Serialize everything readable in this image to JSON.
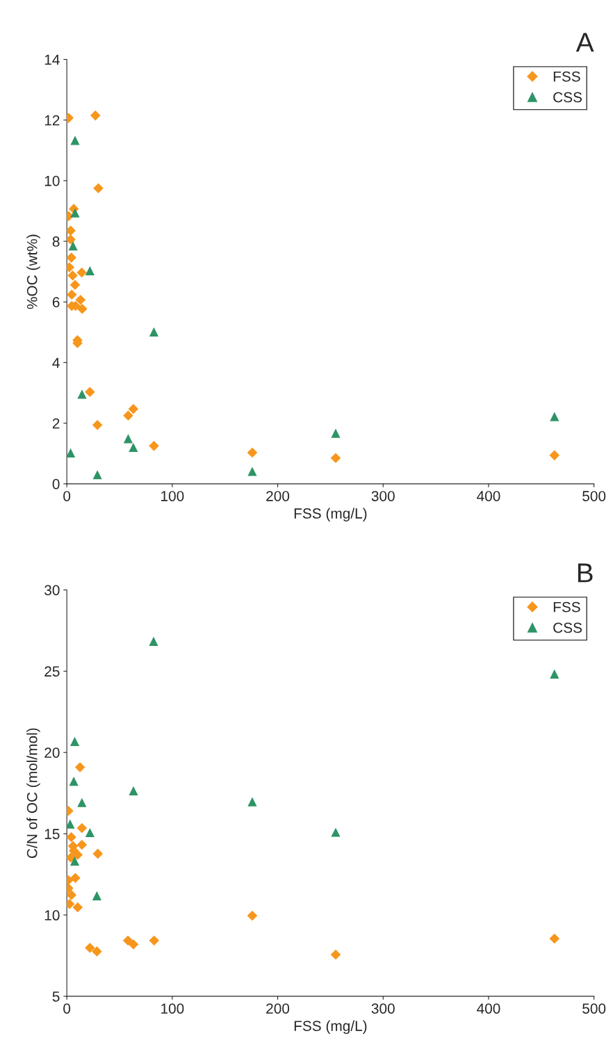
{
  "chart_data": [
    {
      "type": "scatter",
      "title": "A",
      "xlabel": "FSS (mg/L)",
      "ylabel": "%OC (wt%)",
      "xlim": [
        0,
        500
      ],
      "xticks": [
        0,
        100,
        200,
        300,
        400,
        500
      ],
      "ylim": [
        0,
        14
      ],
      "yticks": [
        0,
        2,
        4,
        6,
        8,
        10,
        12,
        14
      ],
      "grid": false,
      "legend": "top right",
      "series": [
        {
          "name": "FSS",
          "color": "#f7961c",
          "marker": "diamond",
          "x": [
            1.7,
            27.1,
            29.9,
            6.6,
            1.7,
            3.6,
            3.6,
            4.3,
            2.4,
            5.5,
            14.2,
            7.8,
            4.7,
            13,
            4.7,
            8.3,
            14.6,
            10.1,
            10.1,
            21.9,
            63.1,
            58.2,
            29,
            82.6,
            175.9,
            255,
            462.5
          ],
          "values": [
            12.07,
            12.15,
            9.75,
            9.07,
            8.83,
            8.35,
            8.06,
            7.46,
            7.14,
            6.87,
            6.97,
            6.56,
            6.24,
            6.07,
            5.87,
            5.87,
            5.77,
            4.74,
            4.64,
            3.03,
            2.47,
            2.25,
            1.94,
            1.25,
            1.03,
            0.85,
            0.94
          ]
        },
        {
          "name": "CSS",
          "color": "#2e9466",
          "marker": "triangle",
          "x": [
            7.8,
            7.8,
            5.9,
            21.9,
            82.6,
            14.4,
            58.2,
            63.1,
            3.6,
            29,
            175.9,
            255,
            462.5
          ],
          "values": [
            11.33,
            8.94,
            7.85,
            7.03,
            5.01,
            2.96,
            1.49,
            1.2,
            1.02,
            0.3,
            0.41,
            1.67,
            2.22
          ]
        }
      ]
    },
    {
      "type": "scatter",
      "title": "B",
      "xlabel": "FSS (mg/L)",
      "ylabel": "C/N of OC (mol/mol)",
      "xlim": [
        0,
        500
      ],
      "xticks": [
        0,
        100,
        200,
        300,
        400,
        500
      ],
      "ylim": [
        5,
        30
      ],
      "yticks": [
        5,
        10,
        15,
        20,
        25,
        30
      ],
      "grid": false,
      "legend": "top right",
      "series": [
        {
          "name": "FSS",
          "color": "#f7961c",
          "marker": "diamond",
          "x": [
            12.5,
            1.5,
            14.3,
            4.2,
            14.3,
            5.9,
            6.6,
            29.4,
            10.3,
            3.7,
            8.1,
            1.5,
            1.5,
            4.4,
            2.6,
            10.3,
            21.9,
            28.5,
            58,
            63.2,
            82.8,
            175.9,
            255,
            462.5
          ],
          "values": [
            19.09,
            16.41,
            15.35,
            14.79,
            14.32,
            14.24,
            13.96,
            13.77,
            13.7,
            13.53,
            12.28,
            12.14,
            11.65,
            11.23,
            10.68,
            10.47,
            7.98,
            7.76,
            8.43,
            8.19,
            8.43,
            9.96,
            7.56,
            8.55
          ]
        },
        {
          "name": "CSS",
          "color": "#2e9466",
          "marker": "triangle",
          "x": [
            7.5,
            6.6,
            63.2,
            14.3,
            3.1,
            21.9,
            7.5,
            28.5,
            82.3,
            462.5,
            175.9,
            255
          ],
          "values": [
            20.68,
            18.23,
            17.64,
            16.92,
            15.6,
            15.07,
            13.32,
            11.18,
            26.84,
            24.83,
            16.97,
            15.09
          ]
        }
      ]
    }
  ]
}
